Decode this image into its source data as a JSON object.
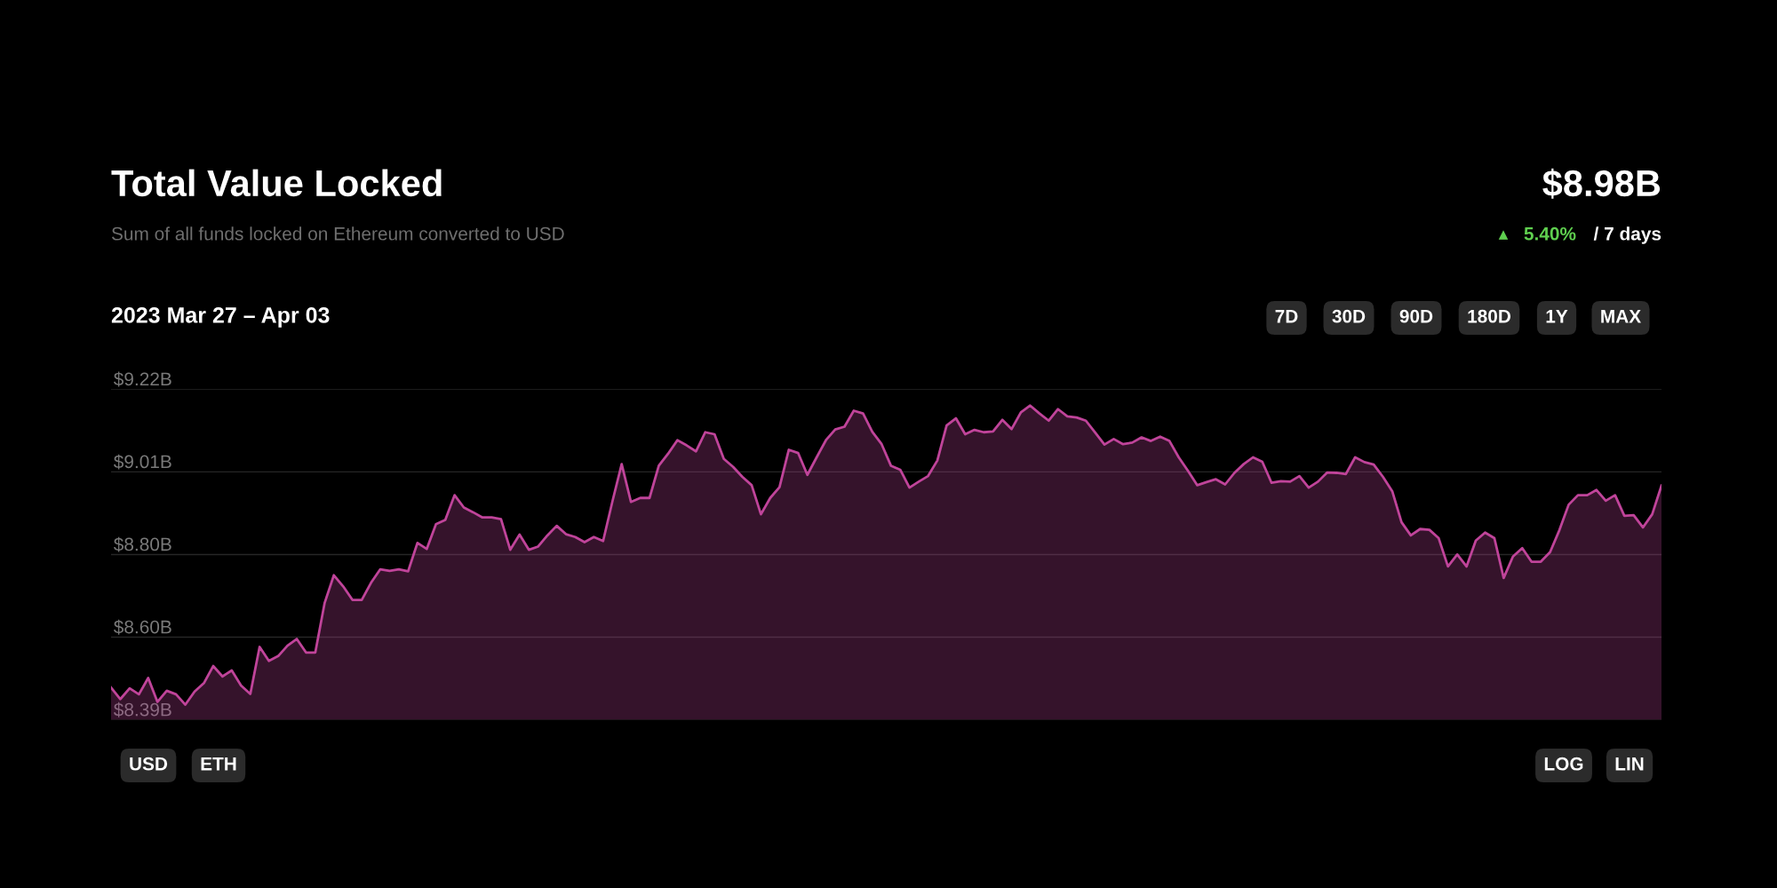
{
  "chart_data": {
    "type": "area",
    "title": "Total Value Locked",
    "subtitle": "Sum of all funds locked on Ethereum converted to USD",
    "annotations": [
      "$8.98B",
      "5.40%",
      "/ 7 days",
      "2023 Mar 27 – Apr 03",
      "7D",
      "30D",
      "90D",
      "180D",
      "1Y",
      "MAX",
      "USD",
      "ETH",
      "LOG",
      "LIN"
    ],
    "categories": [
      null,
      null,
      null,
      null,
      null,
      null,
      null,
      null,
      null,
      null,
      null,
      null,
      null,
      null,
      null,
      null,
      null,
      null,
      null,
      null,
      null,
      null,
      null,
      null,
      null,
      null,
      null,
      null,
      null,
      null,
      null,
      null,
      null,
      null,
      null,
      null,
      null,
      null,
      null,
      null,
      null,
      null,
      null,
      null,
      null,
      null,
      null,
      null,
      null,
      null,
      null,
      null,
      null,
      null,
      null,
      null,
      null,
      null,
      null,
      null,
      null,
      null,
      null,
      null,
      null,
      null,
      null,
      null,
      null,
      null,
      null,
      null,
      null,
      null,
      null,
      null,
      null,
      null,
      null,
      null,
      null,
      null,
      null,
      null,
      null,
      null,
      null,
      null,
      null,
      null,
      null,
      null,
      null,
      null,
      null,
      null,
      null,
      null,
      null,
      null,
      null,
      null,
      null,
      null,
      null,
      null,
      null,
      null,
      null,
      null,
      null,
      null,
      null,
      null,
      null,
      null,
      null,
      null,
      null,
      null,
      null,
      null,
      null,
      null,
      null,
      null,
      null,
      null,
      null,
      null,
      null,
      null,
      null,
      null,
      null,
      null,
      null,
      null,
      null,
      null,
      null,
      null,
      null,
      null,
      null,
      null,
      null,
      null,
      null,
      null,
      null,
      null,
      null,
      null,
      null,
      null,
      null,
      null,
      null,
      null,
      null,
      null,
      null,
      null,
      null,
      null,
      null,
      null
    ],
    "series": [
      {
        "color": "#c0449a",
        "values": [
          8.471,
          8.442,
          8.469,
          8.454,
          8.495,
          8.435,
          8.463,
          8.454,
          8.428,
          8.461,
          8.482,
          8.525,
          8.499,
          8.514,
          8.476,
          8.455,
          8.573,
          8.538,
          8.55,
          8.576,
          8.593,
          8.559,
          8.559,
          8.683,
          8.753,
          8.725,
          8.691,
          8.691,
          8.734,
          8.768,
          8.764,
          8.768,
          8.763,
          8.834,
          8.819,
          8.881,
          8.892,
          8.954,
          8.923,
          8.911,
          8.898,
          8.898,
          8.894,
          8.817,
          8.855,
          8.817,
          8.825,
          8.853,
          8.877,
          8.856,
          8.849,
          8.836,
          8.849,
          8.839,
          8.938,
          9.032,
          8.937,
          8.947,
          8.947,
          9.028,
          9.058,
          9.092,
          9.079,
          9.064,
          9.112,
          9.107,
          9.045,
          9.025,
          9.0,
          8.979,
          8.906,
          8.947,
          8.974,
          9.068,
          9.06,
          9.005,
          9.049,
          9.092,
          9.119,
          9.126,
          9.166,
          9.159,
          9.113,
          9.082,
          9.028,
          9.018,
          8.973,
          8.988,
          9.002,
          9.041,
          9.129,
          9.147,
          9.107,
          9.118,
          9.112,
          9.114,
          9.143,
          9.12,
          9.162,
          9.179,
          9.159,
          9.141,
          9.17,
          9.152,
          9.149,
          9.141,
          9.111,
          9.081,
          9.095,
          9.082,
          9.086,
          9.099,
          9.09,
          9.101,
          9.09,
          9.049,
          9.015,
          8.979,
          8.987,
          8.994,
          8.981,
          9.01,
          9.032,
          9.049,
          9.038,
          8.985,
          8.989,
          8.988,
          9.002,
          8.973,
          8.988,
          9.011,
          9.01,
          9.007,
          9.049,
          9.037,
          9.031,
          9.0,
          8.964,
          8.886,
          8.853,
          8.869,
          8.867,
          8.846,
          8.775,
          8.805,
          8.775,
          8.84,
          8.86,
          8.846,
          8.746,
          8.8,
          8.821,
          8.787,
          8.787,
          8.811,
          8.866,
          8.93,
          8.954,
          8.954,
          8.967,
          8.94,
          8.954,
          8.902,
          8.904,
          8.873,
          8.906,
          8.978
        ]
      }
    ],
    "ylim": [
      8.39,
      9.22
    ],
    "yticks": [
      {
        "value": 8.39,
        "label": "$8.39B"
      },
      {
        "value": 8.5975,
        "label": "$8.60B"
      },
      {
        "value": 8.805,
        "label": "$8.80B"
      },
      {
        "value": 9.0125,
        "label": "$9.01B"
      },
      {
        "value": 9.22,
        "label": "$9.22B"
      }
    ],
    "grid": "y",
    "tick_labels": "y",
    "legend": false
  }
}
